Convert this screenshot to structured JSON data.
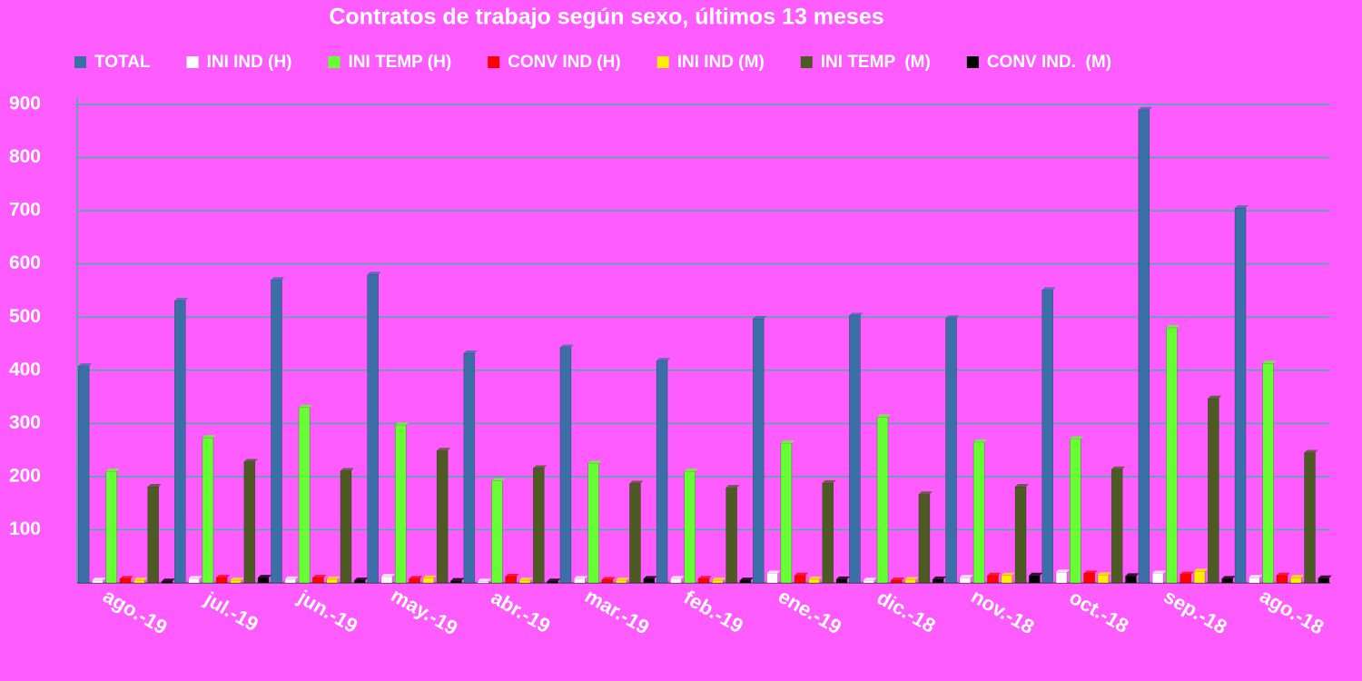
{
  "chart_data": {
    "type": "bar",
    "title": "Contratos de trabajo según sexo, últimos 13 meses",
    "categories": [
      "ago.-19",
      "jul.-19",
      "jun.-19",
      "may.-19",
      "abr.-19",
      "mar.-19",
      "feb.-19",
      "ene.-19",
      "dic.-18",
      "nov.-18",
      "oct.-18",
      "sep.-18",
      "ago.-18"
    ],
    "series": [
      {
        "name": "TOTAL",
        "color": "#3b6fa8",
        "values": [
          408,
          531,
          570,
          580,
          432,
          443,
          418,
          497,
          503,
          498,
          551,
          890,
          705
        ]
      },
      {
        "name": "INI IND (H)",
        "color": "#ffffff",
        "values": [
          5,
          8,
          7,
          12,
          3,
          8,
          8,
          18,
          5,
          10,
          20,
          18,
          10
        ]
      },
      {
        "name": "INI TEMP (H)",
        "color": "#66ff33",
        "values": [
          210,
          273,
          330,
          297,
          192,
          225,
          210,
          263,
          312,
          265,
          271,
          480,
          413
        ]
      },
      {
        "name": "CONV IND (H)",
        "color": "#ff0000",
        "values": [
          8,
          10,
          10,
          8,
          12,
          6,
          8,
          14,
          5,
          14,
          18,
          16,
          14
        ]
      },
      {
        "name": "INI IND (M)",
        "color": "#ffee00",
        "values": [
          5,
          5,
          7,
          9,
          5,
          5,
          5,
          7,
          6,
          14,
          15,
          22,
          10
        ]
      },
      {
        "name": "INI TEMP  (M)",
        "color": "#4e5a23",
        "values": [
          181,
          228,
          211,
          249,
          216,
          187,
          179,
          188,
          167,
          181,
          214,
          347,
          245
        ]
      },
      {
        "name": "CONV IND.  (M)",
        "color": "#000000",
        "values": [
          3,
          10,
          5,
          4,
          3,
          8,
          5,
          7,
          7,
          14,
          13,
          8,
          9
        ]
      }
    ],
    "ylim": [
      0,
      900
    ],
    "yticks": [
      100,
      200,
      300,
      400,
      500,
      600,
      700,
      800,
      900
    ],
    "grid": true
  }
}
